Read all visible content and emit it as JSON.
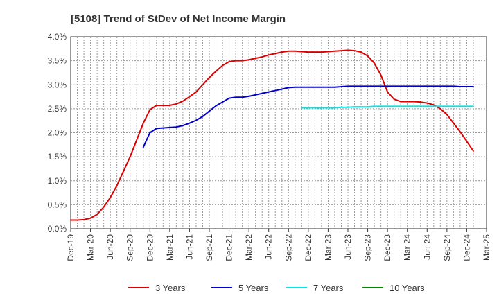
{
  "chart_data": {
    "type": "line",
    "title": "[5108]  Trend of StDev of Net Income Margin",
    "xlabel": "",
    "ylabel": "",
    "x_ticks": [
      "Dec-19",
      "Mar-20",
      "Jun-20",
      "Sep-20",
      "Dec-20",
      "Mar-21",
      "Jun-21",
      "Sep-21",
      "Dec-21",
      "Mar-22",
      "Jun-22",
      "Sep-22",
      "Dec-22",
      "Mar-23",
      "Jun-23",
      "Sep-23",
      "Dec-23",
      "Mar-24",
      "Jun-24",
      "Sep-24",
      "Dec-24",
      "Mar-25"
    ],
    "y_ticks": [
      "0.0%",
      "0.5%",
      "1.0%",
      "1.5%",
      "2.0%",
      "2.5%",
      "3.0%",
      "3.5%",
      "4.0%"
    ],
    "ylim": [
      0,
      4.0
    ],
    "grid": true,
    "legend_position": "bottom",
    "series": [
      {
        "name": "3 Years",
        "color": "#dd0000",
        "points": [
          [
            "Dec-19",
            0.18
          ],
          [
            "Jan-20",
            0.18
          ],
          [
            "Feb-20",
            0.19
          ],
          [
            "Mar-20",
            0.22
          ],
          [
            "Apr-20",
            0.3
          ],
          [
            "May-20",
            0.45
          ],
          [
            "Jun-20",
            0.65
          ],
          [
            "Jul-20",
            0.9
          ],
          [
            "Aug-20",
            1.2
          ],
          [
            "Sep-20",
            1.5
          ],
          [
            "Oct-20",
            1.85
          ],
          [
            "Nov-20",
            2.2
          ],
          [
            "Dec-20",
            2.48
          ],
          [
            "Jan-21",
            2.57
          ],
          [
            "Feb-21",
            2.57
          ],
          [
            "Mar-21",
            2.57
          ],
          [
            "Apr-21",
            2.6
          ],
          [
            "May-21",
            2.66
          ],
          [
            "Jun-21",
            2.75
          ],
          [
            "Jul-21",
            2.85
          ],
          [
            "Aug-21",
            3.0
          ],
          [
            "Sep-21",
            3.15
          ],
          [
            "Oct-21",
            3.28
          ],
          [
            "Nov-21",
            3.4
          ],
          [
            "Dec-21",
            3.48
          ],
          [
            "Jan-22",
            3.5
          ],
          [
            "Feb-22",
            3.5
          ],
          [
            "Mar-22",
            3.52
          ],
          [
            "Apr-22",
            3.55
          ],
          [
            "May-22",
            3.58
          ],
          [
            "Jun-22",
            3.62
          ],
          [
            "Jul-22",
            3.65
          ],
          [
            "Aug-22",
            3.68
          ],
          [
            "Sep-22",
            3.7
          ],
          [
            "Oct-22",
            3.7
          ],
          [
            "Nov-22",
            3.69
          ],
          [
            "Dec-22",
            3.68
          ],
          [
            "Jan-23",
            3.68
          ],
          [
            "Feb-23",
            3.68
          ],
          [
            "Mar-23",
            3.69
          ],
          [
            "Apr-23",
            3.7
          ],
          [
            "May-23",
            3.71
          ],
          [
            "Jun-23",
            3.72
          ],
          [
            "Jul-23",
            3.71
          ],
          [
            "Aug-23",
            3.68
          ],
          [
            "Sep-23",
            3.6
          ],
          [
            "Oct-23",
            3.45
          ],
          [
            "Nov-23",
            3.2
          ],
          [
            "Dec-23",
            2.85
          ],
          [
            "Jan-24",
            2.7
          ],
          [
            "Feb-24",
            2.65
          ],
          [
            "Mar-24",
            2.65
          ],
          [
            "Apr-24",
            2.65
          ],
          [
            "May-24",
            2.64
          ],
          [
            "Jun-24",
            2.62
          ],
          [
            "Jul-24",
            2.58
          ],
          [
            "Aug-24",
            2.5
          ],
          [
            "Sep-24",
            2.38
          ],
          [
            "Oct-24",
            2.2
          ],
          [
            "Nov-24",
            2.02
          ],
          [
            "Dec-24",
            1.82
          ],
          [
            "Jan-25",
            1.62
          ]
        ]
      },
      {
        "name": "5 Years",
        "color": "#0000cc",
        "points": [
          [
            "Nov-20",
            1.7
          ],
          [
            "Dec-20",
            2.0
          ],
          [
            "Jan-21",
            2.09
          ],
          [
            "Feb-21",
            2.1
          ],
          [
            "Mar-21",
            2.11
          ],
          [
            "Apr-21",
            2.12
          ],
          [
            "May-21",
            2.15
          ],
          [
            "Jun-21",
            2.2
          ],
          [
            "Jul-21",
            2.26
          ],
          [
            "Aug-21",
            2.34
          ],
          [
            "Sep-21",
            2.45
          ],
          [
            "Oct-21",
            2.56
          ],
          [
            "Nov-21",
            2.64
          ],
          [
            "Dec-21",
            2.72
          ],
          [
            "Jan-22",
            2.74
          ],
          [
            "Feb-22",
            2.74
          ],
          [
            "Mar-22",
            2.76
          ],
          [
            "Apr-22",
            2.79
          ],
          [
            "May-22",
            2.82
          ],
          [
            "Jun-22",
            2.85
          ],
          [
            "Jul-22",
            2.88
          ],
          [
            "Aug-22",
            2.91
          ],
          [
            "Sep-22",
            2.94
          ],
          [
            "Oct-22",
            2.95
          ],
          [
            "Nov-22",
            2.95
          ],
          [
            "Dec-22",
            2.95
          ],
          [
            "Jan-23",
            2.95
          ],
          [
            "Feb-23",
            2.95
          ],
          [
            "Mar-23",
            2.95
          ],
          [
            "Apr-23",
            2.95
          ],
          [
            "May-23",
            2.96
          ],
          [
            "Jun-23",
            2.97
          ],
          [
            "Jul-23",
            2.97
          ],
          [
            "Aug-23",
            2.97
          ],
          [
            "Sep-23",
            2.97
          ],
          [
            "Oct-23",
            2.97
          ],
          [
            "Nov-23",
            2.97
          ],
          [
            "Dec-23",
            2.97
          ],
          [
            "Jan-24",
            2.97
          ],
          [
            "Feb-24",
            2.97
          ],
          [
            "Mar-24",
            2.97
          ],
          [
            "Apr-24",
            2.97
          ],
          [
            "May-24",
            2.97
          ],
          [
            "Jun-24",
            2.97
          ],
          [
            "Jul-24",
            2.97
          ],
          [
            "Aug-24",
            2.97
          ],
          [
            "Sep-24",
            2.97
          ],
          [
            "Oct-24",
            2.97
          ],
          [
            "Nov-24",
            2.96
          ],
          [
            "Dec-24",
            2.96
          ],
          [
            "Jan-25",
            2.96
          ]
        ]
      },
      {
        "name": "7 Years",
        "color": "#00e5e5",
        "points": [
          [
            "Nov-22",
            2.52
          ],
          [
            "Dec-22",
            2.52
          ],
          [
            "Jan-23",
            2.52
          ],
          [
            "Feb-23",
            2.52
          ],
          [
            "Mar-23",
            2.52
          ],
          [
            "Apr-23",
            2.52
          ],
          [
            "May-23",
            2.53
          ],
          [
            "Jun-23",
            2.53
          ],
          [
            "Jul-23",
            2.54
          ],
          [
            "Aug-23",
            2.54
          ],
          [
            "Sep-23",
            2.54
          ],
          [
            "Oct-23",
            2.55
          ],
          [
            "Nov-23",
            2.55
          ],
          [
            "Dec-23",
            2.55
          ],
          [
            "Jan-24",
            2.55
          ],
          [
            "Feb-24",
            2.55
          ],
          [
            "Mar-24",
            2.55
          ],
          [
            "Apr-24",
            2.55
          ],
          [
            "May-24",
            2.55
          ],
          [
            "Jun-24",
            2.55
          ],
          [
            "Jul-24",
            2.55
          ],
          [
            "Aug-24",
            2.55
          ],
          [
            "Sep-24",
            2.55
          ],
          [
            "Oct-24",
            2.55
          ],
          [
            "Nov-24",
            2.55
          ],
          [
            "Dec-24",
            2.55
          ],
          [
            "Jan-25",
            2.55
          ]
        ]
      },
      {
        "name": "10 Years",
        "color": "#008800",
        "points": []
      }
    ]
  }
}
